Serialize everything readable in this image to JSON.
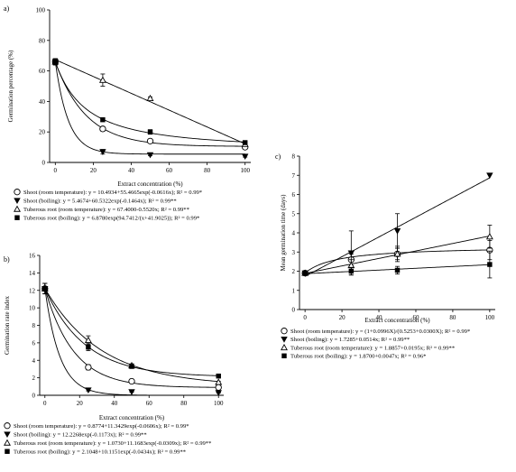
{
  "chart_data": [
    {
      "type": "scatter",
      "panel_label": "a)",
      "ylabel": "Germination percentage (%)",
      "xlabel": "Extract concentration (%)",
      "xlim": [
        -3,
        103
      ],
      "ylim": [
        0,
        100
      ],
      "xticks": [
        "0",
        "20",
        "40",
        "60",
        "80",
        "100"
      ],
      "yticks": [
        "0",
        "20",
        "40",
        "60",
        "80",
        "100"
      ],
      "grid": false,
      "legend_position": "bottom",
      "series": [
        {
          "name": "Shoot (room temperature)",
          "marker": "circle-open",
          "legend": "Shoot (room temperature): y = 10.4934+55.4665exp(-0.0616x); R² = 0.99*",
          "x": [
            0,
            25,
            50,
            100
          ],
          "y": [
            66,
            22,
            14,
            10
          ],
          "err": [
            2,
            1.5,
            1,
            1
          ],
          "fit": {
            "kind": "exp",
            "a": 10.4934,
            "b": 55.4665,
            "c": -0.0616
          }
        },
        {
          "name": "Shoot (boiling)",
          "marker": "triangle-down-filled",
          "legend": "Shoot (boiling): y = 5.4674+60.5322exp(-0.1464x); R² = 0.99**",
          "x": [
            0,
            25,
            50,
            100
          ],
          "y": [
            66,
            7,
            5,
            4
          ],
          "err": [
            2,
            1.5,
            0.5,
            0.5
          ],
          "fit": {
            "kind": "exp",
            "a": 5.4674,
            "b": 60.5322,
            "c": -0.1464
          }
        },
        {
          "name": "Tuberous root (room temperature)",
          "marker": "triangle-up-open",
          "legend": "Tuberous root (room temperature): y = 67.4000-0.5520x; R² = 0.99**",
          "x": [
            0,
            25,
            50,
            100
          ],
          "y": [
            66,
            54,
            42,
            12
          ],
          "err": [
            2,
            4,
            1,
            1
          ],
          "fit": {
            "kind": "linear",
            "a": 67.4,
            "b": -0.552
          }
        },
        {
          "name": "Tuberous root (boiling)",
          "marker": "square-filled",
          "legend": "Tuberous root (boiling): y = 6.8780exp(94.7412/(x+41.9025)); R² = 0.99*",
          "x": [
            0,
            25,
            50,
            100
          ],
          "y": [
            66,
            28,
            20,
            13
          ],
          "err": [
            2,
            1,
            1.5,
            1
          ],
          "fit": {
            "kind": "exprec",
            "a": 6.878,
            "b": 94.7412,
            "c": 41.9025
          }
        }
      ]
    },
    {
      "type": "scatter",
      "panel_label": "b)",
      "ylabel": "Germination rate index",
      "xlabel": "Extract concentration (%)",
      "xlim": [
        -3,
        103
      ],
      "ylim": [
        0,
        16
      ],
      "xticks": [
        "0",
        "20",
        "40",
        "60",
        "80",
        "100"
      ],
      "yticks": [
        "0",
        "2",
        "4",
        "6",
        "8",
        "10",
        "12",
        "14",
        "16"
      ],
      "grid": false,
      "legend_position": "bottom",
      "series": [
        {
          "name": "Shoot (room temperature)",
          "marker": "circle-open",
          "legend": "Shoot (room temperature): y = 0.8774+11.3429exp(-0.0606x); R² = 0.99*",
          "x": [
            0,
            25,
            50,
            100
          ],
          "y": [
            12.2,
            3.2,
            1.6,
            0.9
          ],
          "err": [
            0.6,
            0.3,
            0.15,
            0.1
          ],
          "fit": {
            "kind": "exp",
            "a": 0.8774,
            "b": 11.3429,
            "c": -0.0606
          }
        },
        {
          "name": "Shoot (boiling)",
          "marker": "triangle-down-filled",
          "legend": "Shoot (boiling): y = 12.2268exp(-0.1173x); R² = 0.99**",
          "x": [
            0,
            25,
            50,
            100
          ],
          "y": [
            12.2,
            0.6,
            0.4,
            0.3
          ],
          "err": [
            0.6,
            0.1,
            0.05,
            0.05
          ],
          "fit": {
            "kind": "exp",
            "a": 0,
            "b": 12.2268,
            "c": -0.1173
          }
        },
        {
          "name": "Tuberous root (room temperature)",
          "marker": "triangle-up-open",
          "legend": "Tuberous root (room temperature): y = 1.0730+11.1683exp(-0.0309x); R² = 0.99**",
          "x": [
            0,
            25,
            50,
            100
          ],
          "y": [
            12.2,
            6.3,
            3.4,
            1.5
          ],
          "err": [
            0.6,
            0.5,
            0.2,
            0.1
          ],
          "fit": {
            "kind": "exp",
            "a": 1.073,
            "b": 11.1683,
            "c": -0.0309
          }
        },
        {
          "name": "Tuberous root (boiling)",
          "marker": "square-filled",
          "legend": "Tuberous root (boiling): y = 2.1048+10.1151exp(-0.0434x); R² = 0.99**",
          "x": [
            0,
            25,
            50,
            100
          ],
          "y": [
            12.2,
            5.5,
            3.3,
            2.2
          ],
          "err": [
            0.6,
            0.4,
            0.2,
            0.1
          ],
          "fit": {
            "kind": "exp",
            "a": 2.1048,
            "b": 10.1151,
            "c": -0.0434
          }
        }
      ]
    },
    {
      "type": "scatter",
      "panel_label": "c)",
      "ylabel": "Mean germination time (days)",
      "xlabel": "Extract concentration (%)",
      "xlim": [
        -3,
        103
      ],
      "ylim": [
        0,
        8
      ],
      "xticks": [
        "0",
        "20",
        "40",
        "60",
        "80",
        "100"
      ],
      "yticks": [
        "0",
        "1",
        "2",
        "3",
        "4",
        "5",
        "6",
        "7",
        "8"
      ],
      "grid": false,
      "legend_position": "bottom",
      "series": [
        {
          "name": "Shoot (room temperature)",
          "marker": "circle-open",
          "legend": "Shoot (room temperature): y = (1+0.0996X)/(0.5253+0.0300X); R² = 0.99*",
          "x": [
            0,
            25,
            50,
            100
          ],
          "y": [
            1.9,
            2.6,
            2.9,
            3.1
          ],
          "err": [
            0.05,
            0.3,
            0.3,
            0.5
          ],
          "fit": {
            "kind": "rational",
            "a": 1,
            "b": 0.0996,
            "c": 0.5253,
            "d": 0.03
          }
        },
        {
          "name": "Shoot (boiling)",
          "marker": "triangle-down-filled",
          "legend": "Shoot (boiling): y = 1.7285+0.0514x; R² = 0.99**",
          "x": [
            0,
            25,
            50,
            100
          ],
          "y": [
            1.9,
            2.95,
            4.1,
            7.0
          ],
          "err": [
            0.05,
            1.15,
            0.9,
            0
          ],
          "fit": {
            "kind": "linear",
            "a": 1.7285,
            "b": 0.0514
          }
        },
        {
          "name": "Tuberous root (room temperature)",
          "marker": "triangle-up-open",
          "legend": "Tuberous root (room temperature): y = 1.8857+0.0195x; R² = 0.99**",
          "x": [
            0,
            25,
            50,
            100
          ],
          "y": [
            1.9,
            2.3,
            2.9,
            3.8
          ],
          "err": [
            0.05,
            0.3,
            0.4,
            0.6
          ],
          "fit": {
            "kind": "linear",
            "a": 1.8857,
            "b": 0.0195
          }
        },
        {
          "name": "Tuberous root (boiling)",
          "marker": "square-filled",
          "legend": "Tuberous root (boiling): y = 1.8700+0.0047x; R² = 0.96*",
          "x": [
            0,
            25,
            50,
            100
          ],
          "y": [
            1.9,
            2.0,
            2.05,
            2.35
          ],
          "err": [
            0.05,
            0.2,
            0.2,
            0.7
          ],
          "fit": {
            "kind": "linear",
            "a": 1.87,
            "b": 0.0047
          }
        }
      ]
    }
  ]
}
